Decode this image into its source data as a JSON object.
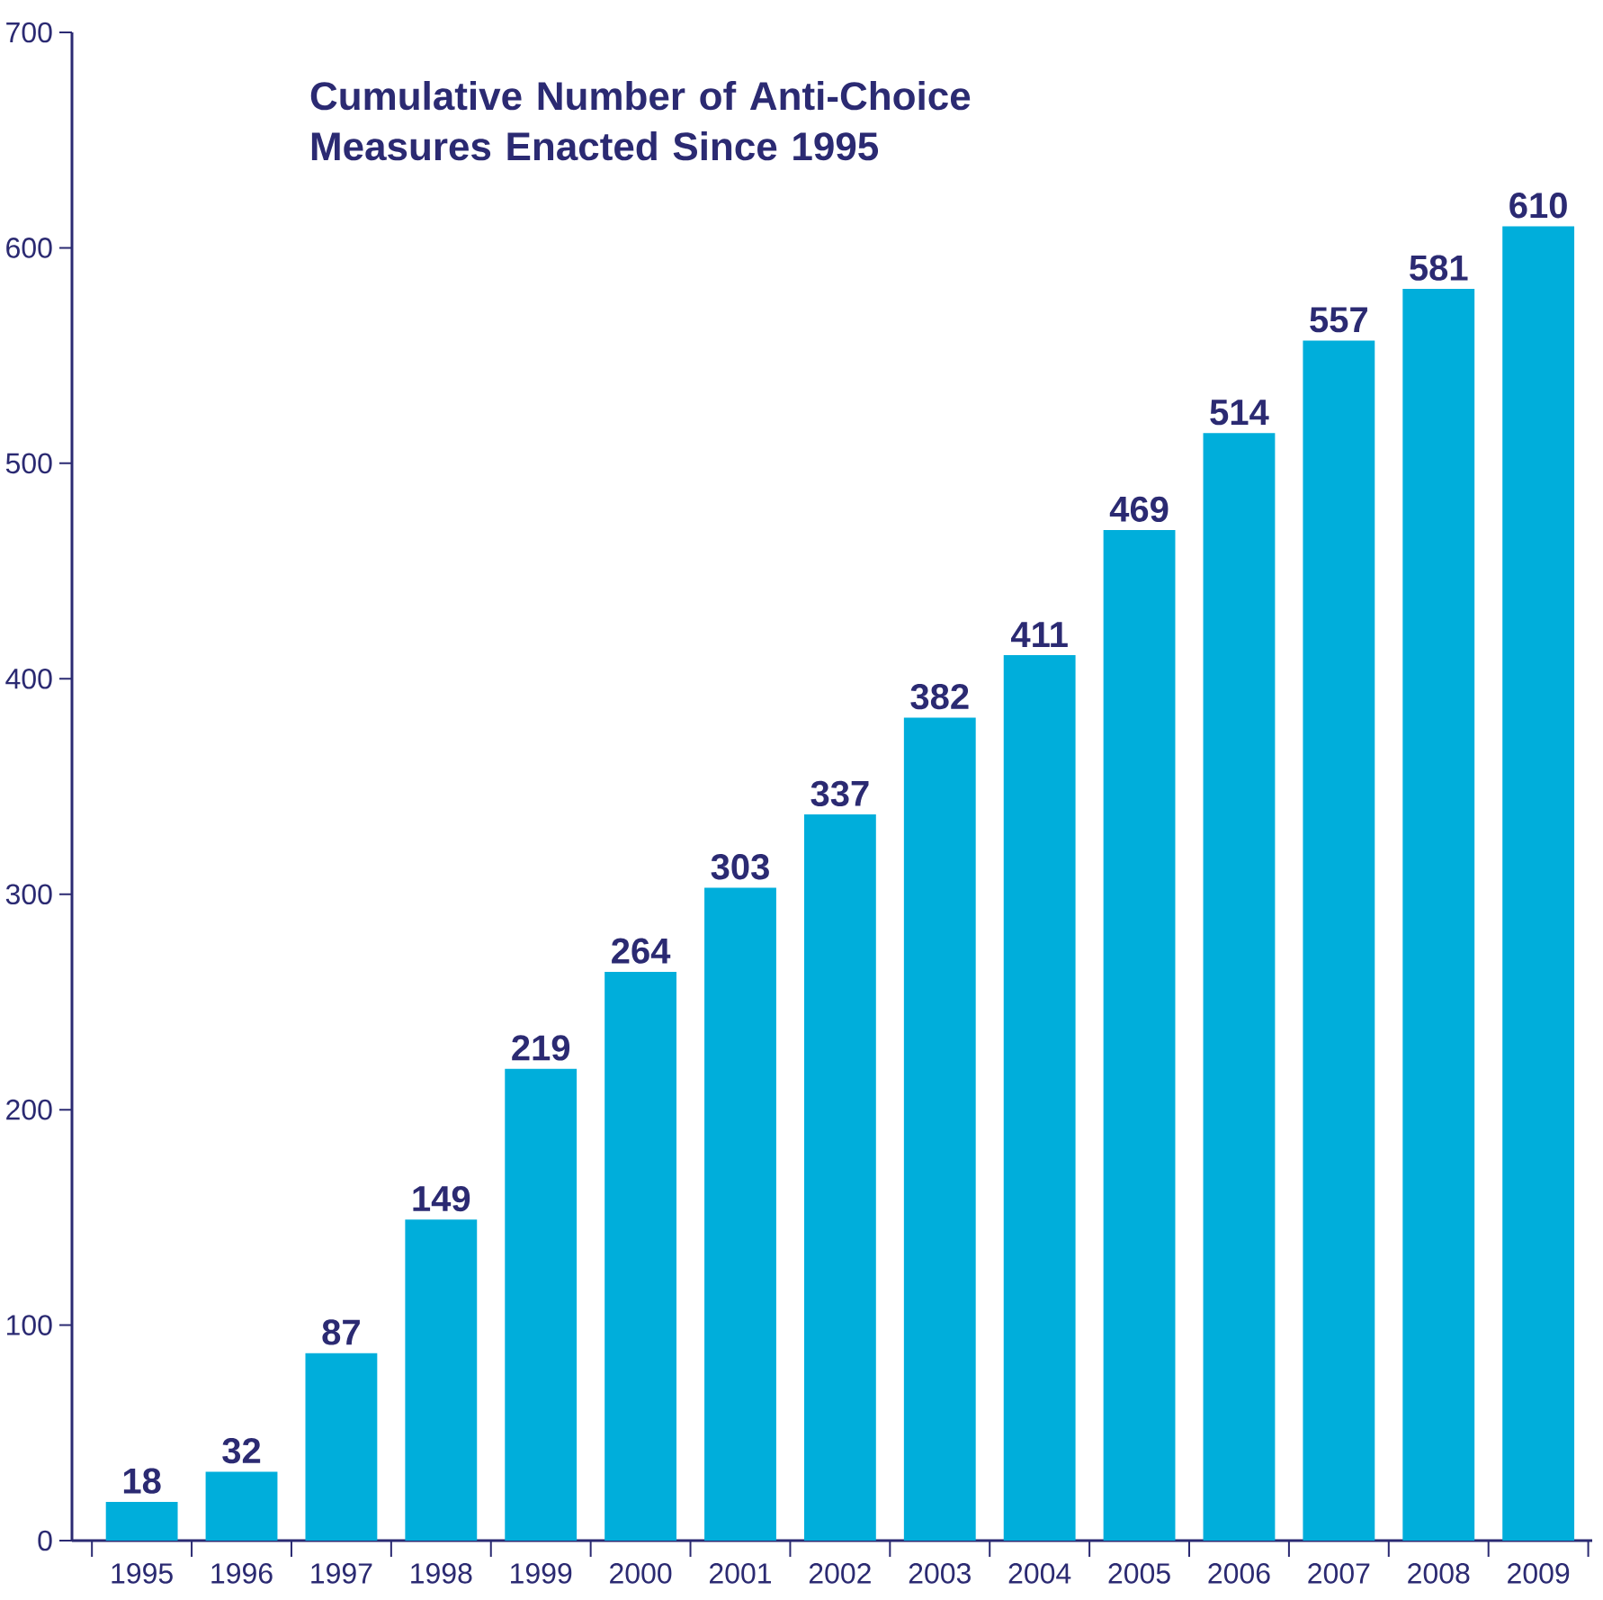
{
  "chart_data": {
    "type": "bar",
    "title": "Cumulative Number of Anti-Choice Measures Enacted Since 1995",
    "categories": [
      "1995",
      "1996",
      "1997",
      "1998",
      "1999",
      "2000",
      "2001",
      "2002",
      "2003",
      "2004",
      "2005",
      "2006",
      "2007",
      "2008",
      "2009"
    ],
    "values": [
      18,
      32,
      87,
      149,
      219,
      264,
      303,
      337,
      382,
      411,
      469,
      514,
      557,
      581,
      610
    ],
    "color": "#00aedb",
    "ylim": [
      0,
      700
    ],
    "yticks": [
      0,
      100,
      200,
      300,
      400,
      500,
      600,
      700
    ],
    "data_labels": true
  }
}
